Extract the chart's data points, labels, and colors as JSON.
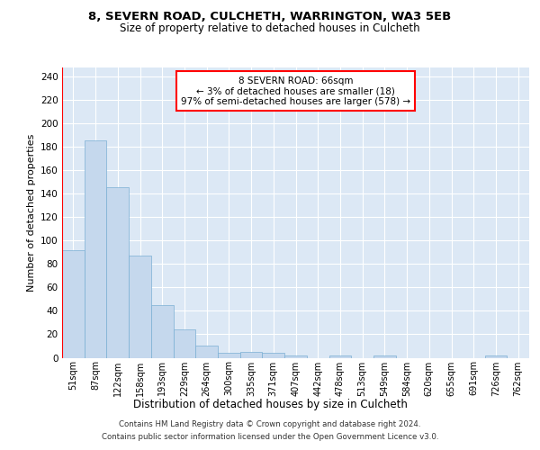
{
  "title_line1": "8, SEVERN ROAD, CULCHETH, WARRINGTON, WA3 5EB",
  "title_line2": "Size of property relative to detached houses in Culcheth",
  "xlabel": "Distribution of detached houses by size in Culcheth",
  "ylabel": "Number of detached properties",
  "footer_line1": "Contains HM Land Registry data © Crown copyright and database right 2024.",
  "footer_line2": "Contains public sector information licensed under the Open Government Licence v3.0.",
  "categories": [
    "51sqm",
    "87sqm",
    "122sqm",
    "158sqm",
    "193sqm",
    "229sqm",
    "264sqm",
    "300sqm",
    "335sqm",
    "371sqm",
    "407sqm",
    "442sqm",
    "478sqm",
    "513sqm",
    "549sqm",
    "584sqm",
    "620sqm",
    "655sqm",
    "691sqm",
    "726sqm",
    "762sqm"
  ],
  "values": [
    92,
    186,
    146,
    87,
    45,
    24,
    10,
    4,
    5,
    4,
    2,
    0,
    2,
    0,
    2,
    0,
    0,
    0,
    0,
    2,
    0
  ],
  "bar_color": "#c5d8ed",
  "bar_edge_color": "#7aafd4",
  "bg_color": "#dce8f5",
  "grid_color": "#ffffff",
  "annotation_text": "8 SEVERN ROAD: 66sqm\n← 3% of detached houses are smaller (18)\n97% of semi-detached houses are larger (578) →",
  "red_line_x": -0.5,
  "ylim": [
    0,
    248
  ],
  "yticks": [
    0,
    20,
    40,
    60,
    80,
    100,
    120,
    140,
    160,
    180,
    200,
    220,
    240
  ]
}
